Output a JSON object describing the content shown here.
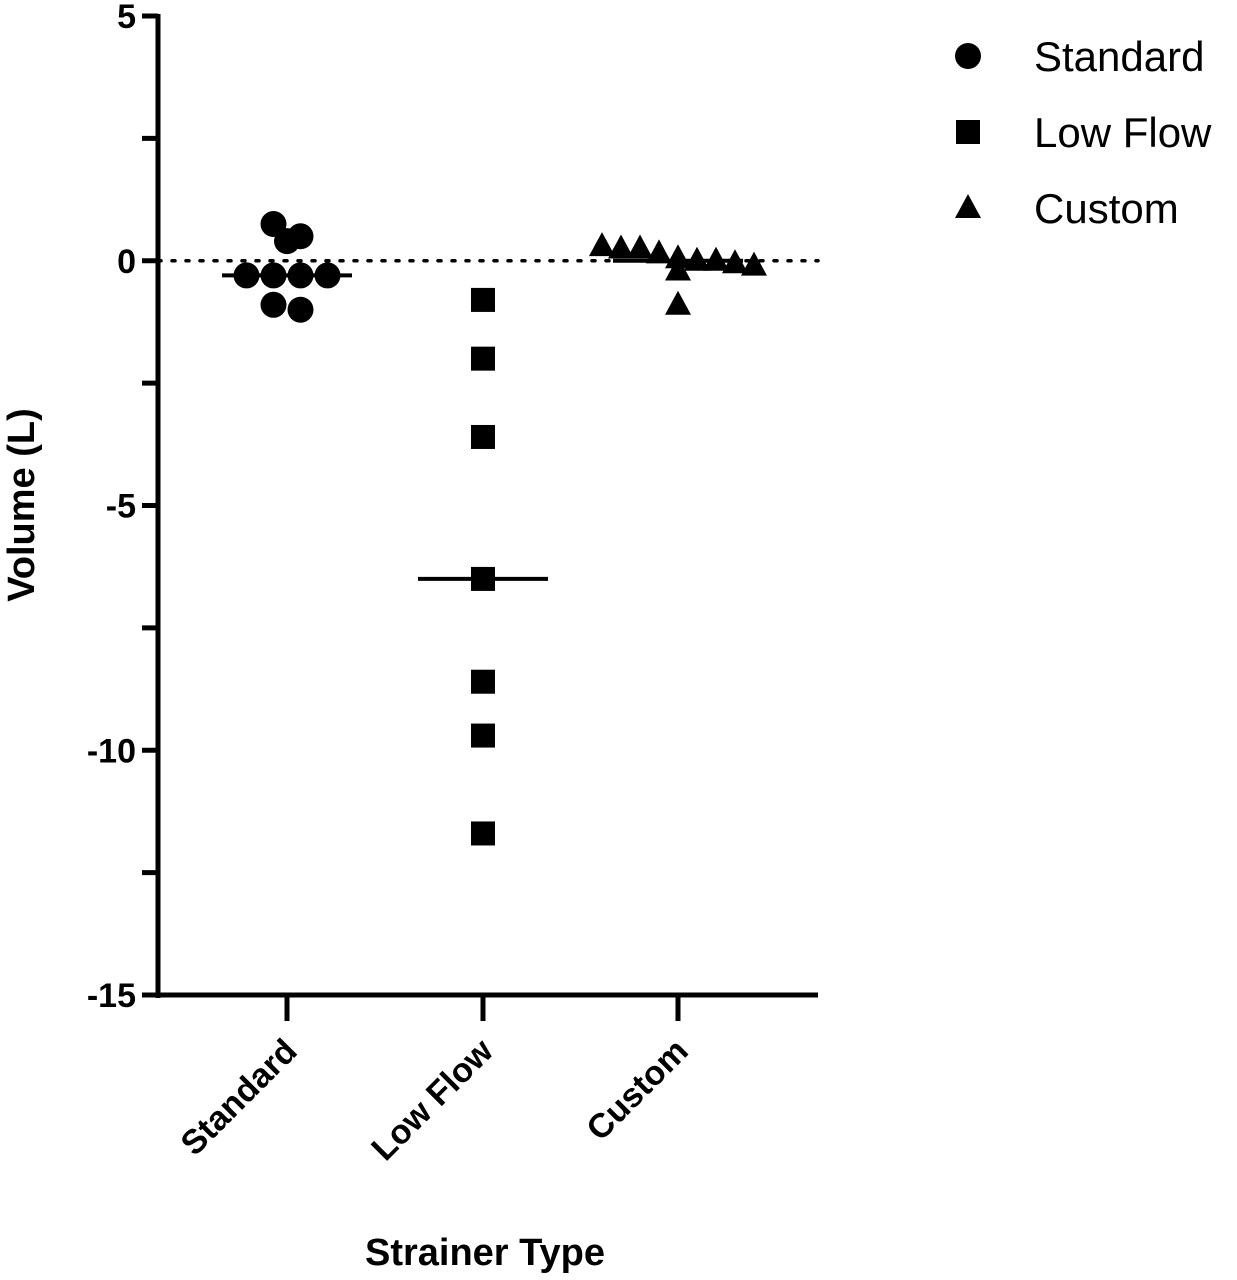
{
  "chart_data": {
    "type": "scatter",
    "xlabel": "Strainer Type",
    "ylabel": "Volume (L)",
    "categories": [
      "Standard",
      "Low Flow",
      "Custom"
    ],
    "ylim": [
      -15,
      5
    ],
    "yticks": [
      5,
      0,
      -5,
      -10,
      -15
    ],
    "reference_line": 0,
    "legend_position": "top-right",
    "series": [
      {
        "name": "Standard",
        "marker": "circle",
        "median": -0.3,
        "values": [
          0.75,
          0.5,
          0.4,
          -0.3,
          -0.3,
          -0.3,
          -0.3,
          -0.9,
          -1.0
        ]
      },
      {
        "name": "Low Flow",
        "marker": "square",
        "median": -6.5,
        "values": [
          -0.8,
          -2.0,
          -3.6,
          -6.5,
          -8.6,
          -9.7,
          -11.7
        ]
      },
      {
        "name": "Custom",
        "marker": "triangle",
        "median": 0.0,
        "values": [
          0.3,
          0.25,
          0.25,
          0.15,
          0.05,
          0.0,
          0.0,
          -0.05,
          -0.1,
          -0.2,
          -0.9
        ]
      }
    ]
  }
}
